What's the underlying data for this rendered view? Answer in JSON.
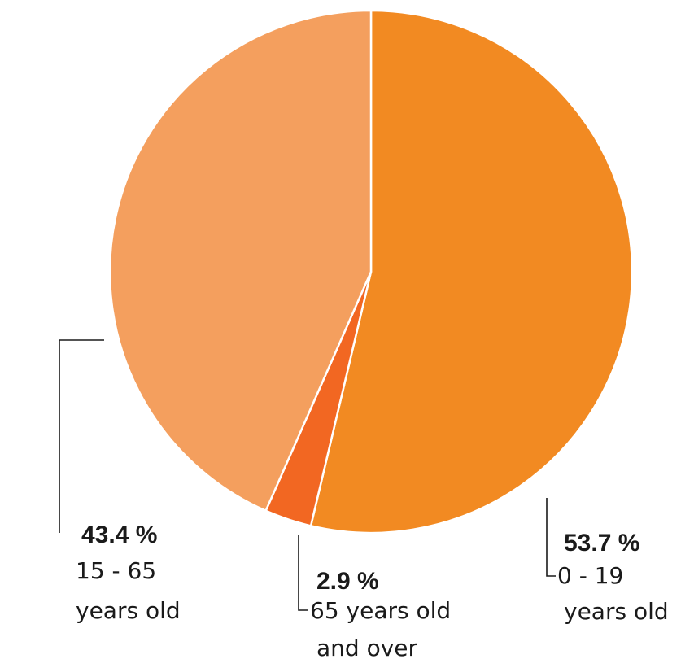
{
  "chart_data": {
    "type": "pie",
    "start_angle_deg": 0,
    "direction": "clockwise",
    "slices": [
      {
        "value": 53.7,
        "percent_label": "53.7 %",
        "category_lines": [
          "0 - 19",
          "years old"
        ],
        "color": "#f28a22"
      },
      {
        "value": 2.9,
        "percent_label": "2.9 %",
        "category_lines": [
          "65 years old",
          "and over"
        ],
        "color": "#f26722"
      },
      {
        "value": 43.4,
        "percent_label": "43.4 %",
        "category_lines": [
          "15 - 65",
          "years old"
        ],
        "color": "#f49f5e"
      }
    ]
  }
}
